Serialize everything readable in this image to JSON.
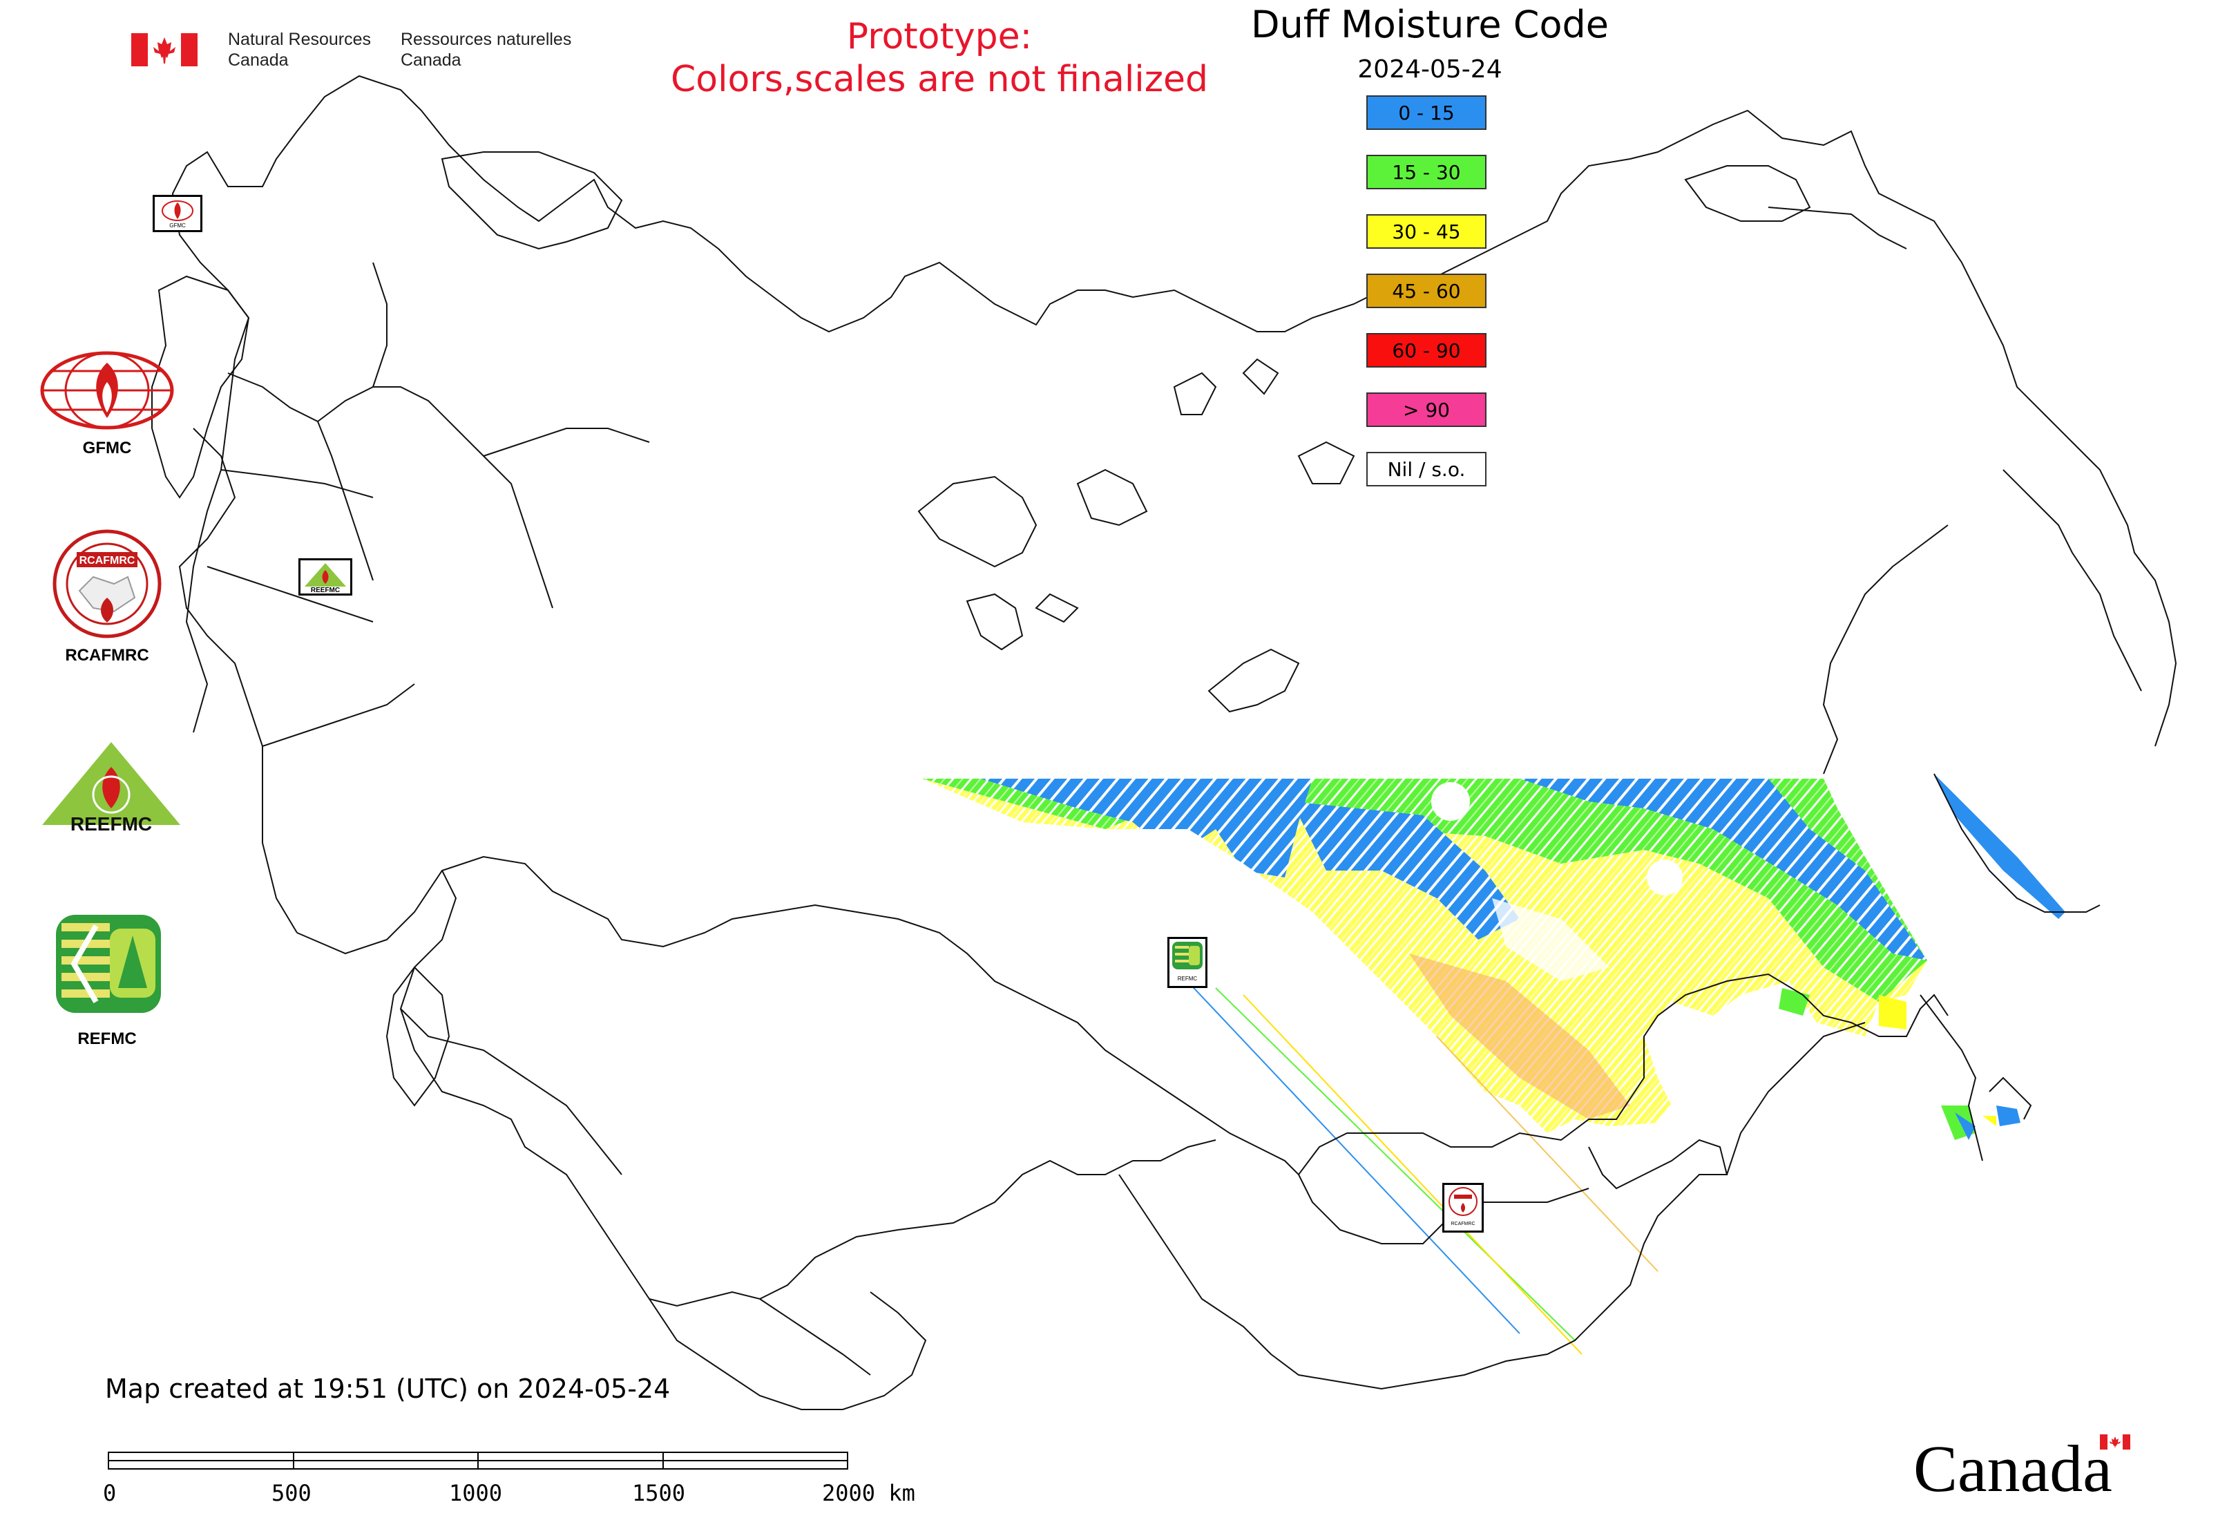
{
  "header": {
    "org_en_line1": "Natural Resources",
    "org_en_line2": "Canada",
    "org_fr_line1": "Ressources naturelles",
    "org_fr_line2": "Canada"
  },
  "prototype": {
    "line1": "Prototype:",
    "line2": "Colors,scales are not finalized"
  },
  "title": "Duff Moisture Code",
  "date": "2024-05-24",
  "legend": [
    {
      "label": "0 - 15",
      "color": "#2b8ff0"
    },
    {
      "label": "15 - 30",
      "color": "#5df23a"
    },
    {
      "label": "30 - 45",
      "color": "#ffff1f"
    },
    {
      "label": "45 - 60",
      "color": "#dca30a"
    },
    {
      "label": "60 - 90",
      "color": "#fa0f0f"
    },
    {
      "label": "> 90",
      "color": "#f53c96"
    },
    {
      "label": "Nil / s.o.",
      "color": "#ffffff"
    }
  ],
  "side_logos": [
    {
      "label": "GFMC",
      "icon": "gfmc-logo"
    },
    {
      "label": "RCAFMRC",
      "icon": "rcafmrc-logo"
    },
    {
      "label": "",
      "icon": "reefmc-logo",
      "logo_text": "REEFMC"
    },
    {
      "label": "REFMC",
      "icon": "refmc-logo"
    }
  ],
  "map_markers": {
    "gfmc": "GFMC",
    "reefmc": "REEFMC",
    "refmc": "REFMC",
    "rcafmrc": "RCAFMRC"
  },
  "footer": {
    "created": "Map created at 19:51 (UTC) on 2024-05-24",
    "scale_ticks": [
      "0",
      "500",
      "1000",
      "1500",
      "2000 km"
    ],
    "wordmark": "Canada"
  }
}
